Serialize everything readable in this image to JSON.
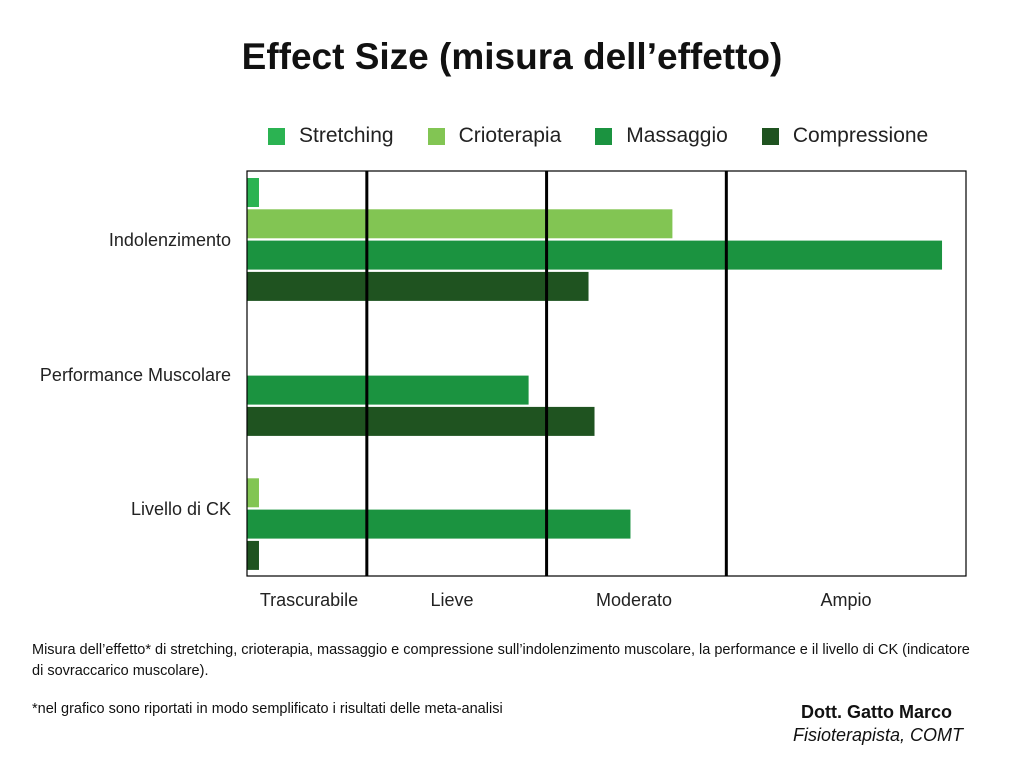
{
  "chart_data": {
    "type": "bar",
    "orientation": "horizontal",
    "title": "Effect Size (misura dell’effetto)",
    "categories": [
      "Indolenzimento",
      "Performance Muscolare",
      "Livello di CK"
    ],
    "series": [
      {
        "name": "Stretching",
        "color": "#2bb352",
        "values": [
          0.02,
          null,
          null
        ]
      },
      {
        "name": "Crioterapia",
        "color": "#82c553",
        "values": [
          0.71,
          null,
          0.02
        ]
      },
      {
        "name": "Massaggio",
        "color": "#1b9340",
        "values": [
          1.16,
          0.47,
          0.64
        ]
      },
      {
        "name": "Compressione",
        "color": "#1f5320",
        "values": [
          0.57,
          0.58,
          0.02
        ]
      }
    ],
    "xlim": [
      0,
      1.2
    ],
    "thresholds": [
      0.2,
      0.5,
      0.8
    ],
    "regions": [
      {
        "label": "Trascurabile",
        "range": [
          0,
          0.2
        ]
      },
      {
        "label": "Lieve",
        "range": [
          0.2,
          0.5
        ]
      },
      {
        "label": "Moderato",
        "range": [
          0.5,
          0.8
        ]
      },
      {
        "label": "Ampio",
        "range": [
          0.8,
          1.2
        ]
      }
    ],
    "legend": "top",
    "grid": false
  },
  "caption": "Misura dell’effetto* di stretching, crioterapia, massaggio e compressione sull’indolenzimento muscolare, la performance e il livello di CK (indicatore di sovraccarico muscolare).",
  "note": "*nel grafico sono riportati in modo semplificato i risultati delle meta-analisi",
  "author": {
    "name": "Dott. Gatto Marco",
    "role": "Fisioterapista, COMT"
  }
}
